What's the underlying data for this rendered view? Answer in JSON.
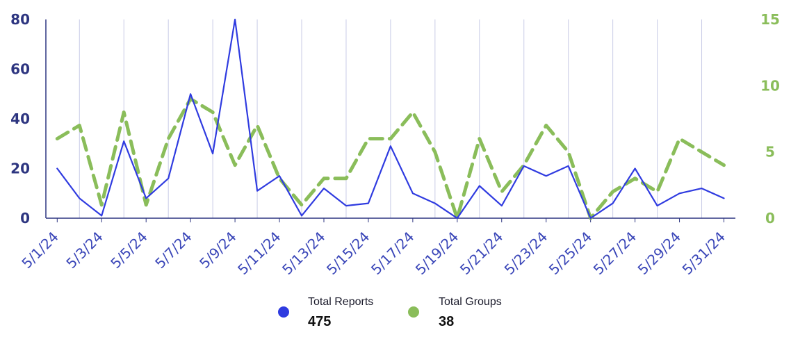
{
  "chart_data": {
    "type": "line",
    "x": [
      "5/1/24",
      "5/2/24",
      "5/3/24",
      "5/4/24",
      "5/5/24",
      "5/6/24",
      "5/7/24",
      "5/8/24",
      "5/9/24",
      "5/10/24",
      "5/11/24",
      "5/12/24",
      "5/13/24",
      "5/14/24",
      "5/15/24",
      "5/16/24",
      "5/17/24",
      "5/18/24",
      "5/19/24",
      "5/20/24",
      "5/21/24",
      "5/22/24",
      "5/23/24",
      "5/24/24",
      "5/25/24",
      "5/26/24",
      "5/27/24",
      "5/28/24",
      "5/29/24",
      "5/30/24",
      "5/31/24"
    ],
    "xtick_labels": [
      "5/1/24",
      "5/3/24",
      "5/5/24",
      "5/7/24",
      "5/9/24",
      "5/11/24",
      "5/13/24",
      "5/15/24",
      "5/17/24",
      "5/19/24",
      "5/21/24",
      "5/23/24",
      "5/25/24",
      "5/27/24",
      "5/29/24",
      "5/31/24"
    ],
    "series": [
      {
        "name": "Total Reports",
        "axis": "left",
        "style": "solid",
        "color": "#2f3be0",
        "values": [
          20,
          8,
          1,
          31,
          8,
          16,
          50,
          26,
          80,
          11,
          17,
          1,
          12,
          5,
          6,
          29,
          10,
          6,
          0,
          13,
          5,
          21,
          17,
          21,
          0,
          6,
          20,
          5,
          10,
          12,
          8
        ],
        "total": "475"
      },
      {
        "name": "Total Groups",
        "axis": "right",
        "style": "dashed",
        "color": "#8abd5a",
        "values": [
          6,
          7,
          1,
          8,
          1,
          6,
          9,
          8,
          4,
          7,
          3,
          1,
          3,
          3,
          6,
          6,
          8,
          5,
          0,
          6,
          2,
          4,
          7,
          5,
          0,
          2,
          3,
          2,
          6,
          5,
          4
        ],
        "total": "38"
      }
    ],
    "y_left": {
      "ylim": [
        0,
        80
      ],
      "ticks": [
        "0",
        "20",
        "40",
        "60",
        "80"
      ],
      "color": "#2d3580"
    },
    "y_right": {
      "ylim": [
        0,
        15
      ],
      "ticks": [
        "0",
        "5",
        "10",
        "15"
      ],
      "color": "#8abd5a"
    },
    "grid": "vertical",
    "legend": "bottom-center",
    "title": "",
    "xlabel": "",
    "ylabel": ""
  }
}
